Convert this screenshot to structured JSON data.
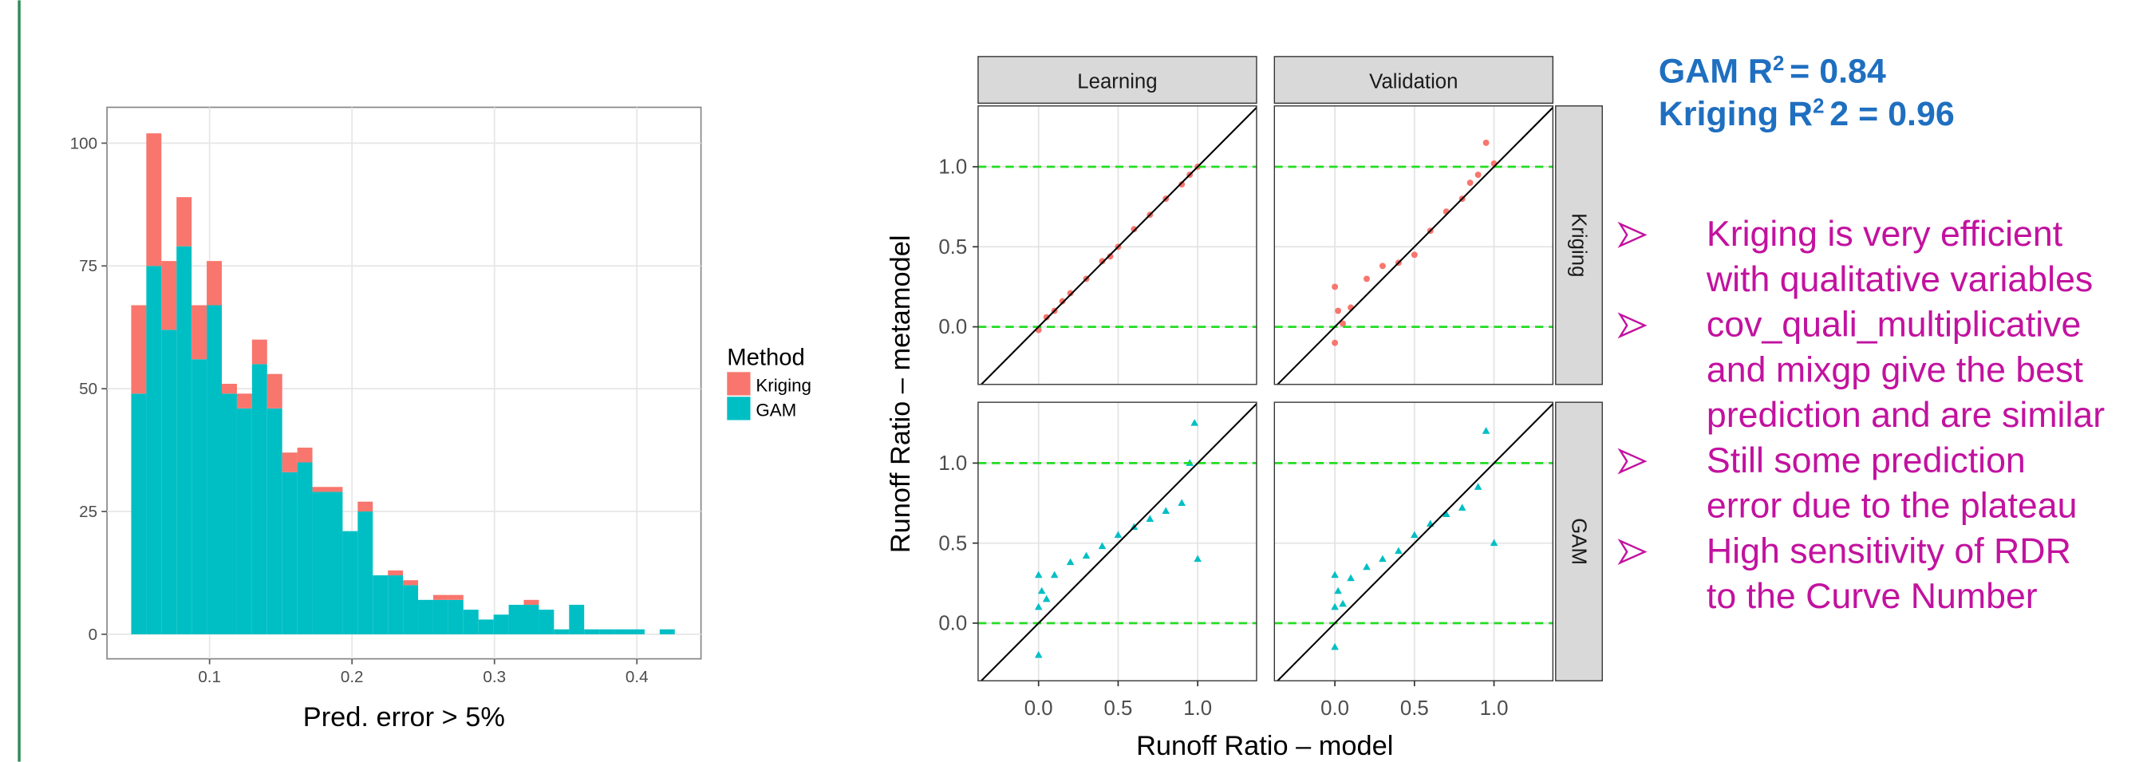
{
  "chart_data": [
    {
      "type": "histogram",
      "x_label": "Pred. error > 5%",
      "legend_title": "Method",
      "bins": [
        0.045,
        0.0556,
        0.0662,
        0.0768,
        0.0874,
        0.098,
        0.1086,
        0.1192,
        0.1298,
        0.1404,
        0.151,
        0.1616,
        0.1722,
        0.1828,
        0.1934,
        0.204,
        0.2146,
        0.2252,
        0.2358,
        0.2464,
        0.257,
        0.2676,
        0.2782,
        0.2888,
        0.2994,
        0.31,
        0.3206,
        0.3312,
        0.3418,
        0.3524,
        0.363,
        0.3736,
        0.3842,
        0.3948,
        0.4054,
        0.416,
        0.4266
      ],
      "series": [
        {
          "name": "Kriging",
          "color": "#f8766d",
          "values": [
            18,
            27,
            14,
            10,
            11,
            9,
            2,
            3,
            5,
            7,
            4,
            3,
            1,
            1,
            0,
            2,
            0,
            1,
            1,
            0,
            1,
            1,
            0,
            0,
            0,
            0,
            1,
            0,
            0,
            0,
            0,
            0,
            0,
            0,
            0,
            0
          ]
        },
        {
          "name": "GAM",
          "color": "#00bfc4",
          "values": [
            49,
            75,
            62,
            79,
            56,
            67,
            49,
            46,
            55,
            46,
            33,
            35,
            29,
            29,
            21,
            25,
            12,
            12,
            10,
            7,
            7,
            7,
            5,
            3,
            4,
            6,
            6,
            5,
            1,
            6,
            1,
            1,
            1,
            1,
            0,
            1
          ]
        }
      ],
      "xlim": [
        0.028,
        0.445
      ],
      "xticks": [
        0.1,
        0.2,
        0.3,
        0.4
      ],
      "ylim": [
        -5,
        107.3
      ],
      "yticks": [
        0,
        25,
        50,
        75,
        100
      ],
      "grid": true
    },
    {
      "type": "scatter",
      "x_label": "Runoff Ratio – model",
      "y_label": "Runoff Ratio – metamodel",
      "columns": [
        "Learning",
        "Validation"
      ],
      "rows": [
        "Kriging",
        "GAM"
      ],
      "xlim": [
        -0.38,
        1.37
      ],
      "ylim": [
        -0.36,
        1.38
      ],
      "xticks": [
        {
          "value": 0,
          "label": "0.0"
        },
        {
          "value": 0.5,
          "label": "0.5"
        },
        {
          "value": 1,
          "label": "1.0"
        }
      ],
      "yticks": [
        {
          "value": 0,
          "label": "0.0"
        },
        {
          "value": 0.5,
          "label": "0.5"
        },
        {
          "value": 1,
          "label": "1.0"
        }
      ],
      "hlines": [
        0,
        1
      ],
      "hline_color": "#22dd22",
      "grid": true,
      "panels": [
        {
          "color": "#f8766d",
          "marker": "circle",
          "x": [
            0,
            0.05,
            0.1,
            0.15,
            0.2,
            0.3,
            0.4,
            0.45,
            0.5,
            0.6,
            0.7,
            0.8,
            0.9,
            0.95,
            1.0
          ],
          "y": [
            -0.02,
            0.06,
            0.1,
            0.16,
            0.21,
            0.3,
            0.41,
            0.44,
            0.5,
            0.61,
            0.7,
            0.8,
            0.89,
            0.95,
            1.0
          ]
        },
        {
          "color": "#f8766d",
          "marker": "circle",
          "x": [
            0,
            0,
            0.02,
            0.05,
            0.1,
            0.2,
            0.3,
            0.4,
            0.5,
            0.6,
            0.7,
            0.8,
            0.85,
            0.9,
            0.95,
            1.0
          ],
          "y": [
            -0.1,
            0.25,
            0.1,
            0.02,
            0.12,
            0.3,
            0.38,
            0.4,
            0.45,
            0.6,
            0.72,
            0.8,
            0.9,
            0.95,
            1.15,
            1.02
          ]
        },
        {
          "color": "#00bfc4",
          "marker": "triangle",
          "x": [
            0,
            0,
            0,
            0.02,
            0.05,
            0.1,
            0.2,
            0.3,
            0.4,
            0.5,
            0.6,
            0.7,
            0.8,
            0.9,
            0.95,
            0.98,
            1.0
          ],
          "y": [
            -0.2,
            0.3,
            0.1,
            0.2,
            0.15,
            0.3,
            0.38,
            0.42,
            0.48,
            0.55,
            0.6,
            0.65,
            0.7,
            0.75,
            1.0,
            1.25,
            0.4
          ]
        },
        {
          "color": "#00bfc4",
          "marker": "triangle",
          "x": [
            0,
            0,
            0,
            0.02,
            0.05,
            0.1,
            0.2,
            0.3,
            0.4,
            0.5,
            0.6,
            0.7,
            0.8,
            0.9,
            0.95,
            1.0
          ],
          "y": [
            -0.15,
            0.3,
            0.1,
            0.2,
            0.12,
            0.28,
            0.35,
            0.4,
            0.45,
            0.55,
            0.62,
            0.68,
            0.72,
            0.85,
            1.2,
            0.5
          ]
        }
      ]
    }
  ],
  "stats": [
    {
      "label": "GAM  R",
      "sup": "2",
      "value": "= 0.84"
    },
    {
      "label": "Kriging R",
      "sup": "2",
      "value": "2 = 0.96"
    }
  ],
  "bullets": [
    [
      "Kriging is very efficient",
      "with qualitative variables"
    ],
    [
      "cov_quali_multiplicative",
      "and mixgp give the best",
      "prediction and are similar"
    ],
    [
      "Still some prediction",
      "error due to the plateau"
    ],
    [
      "High sensitivity of RDR",
      "to the Curve Number"
    ]
  ]
}
